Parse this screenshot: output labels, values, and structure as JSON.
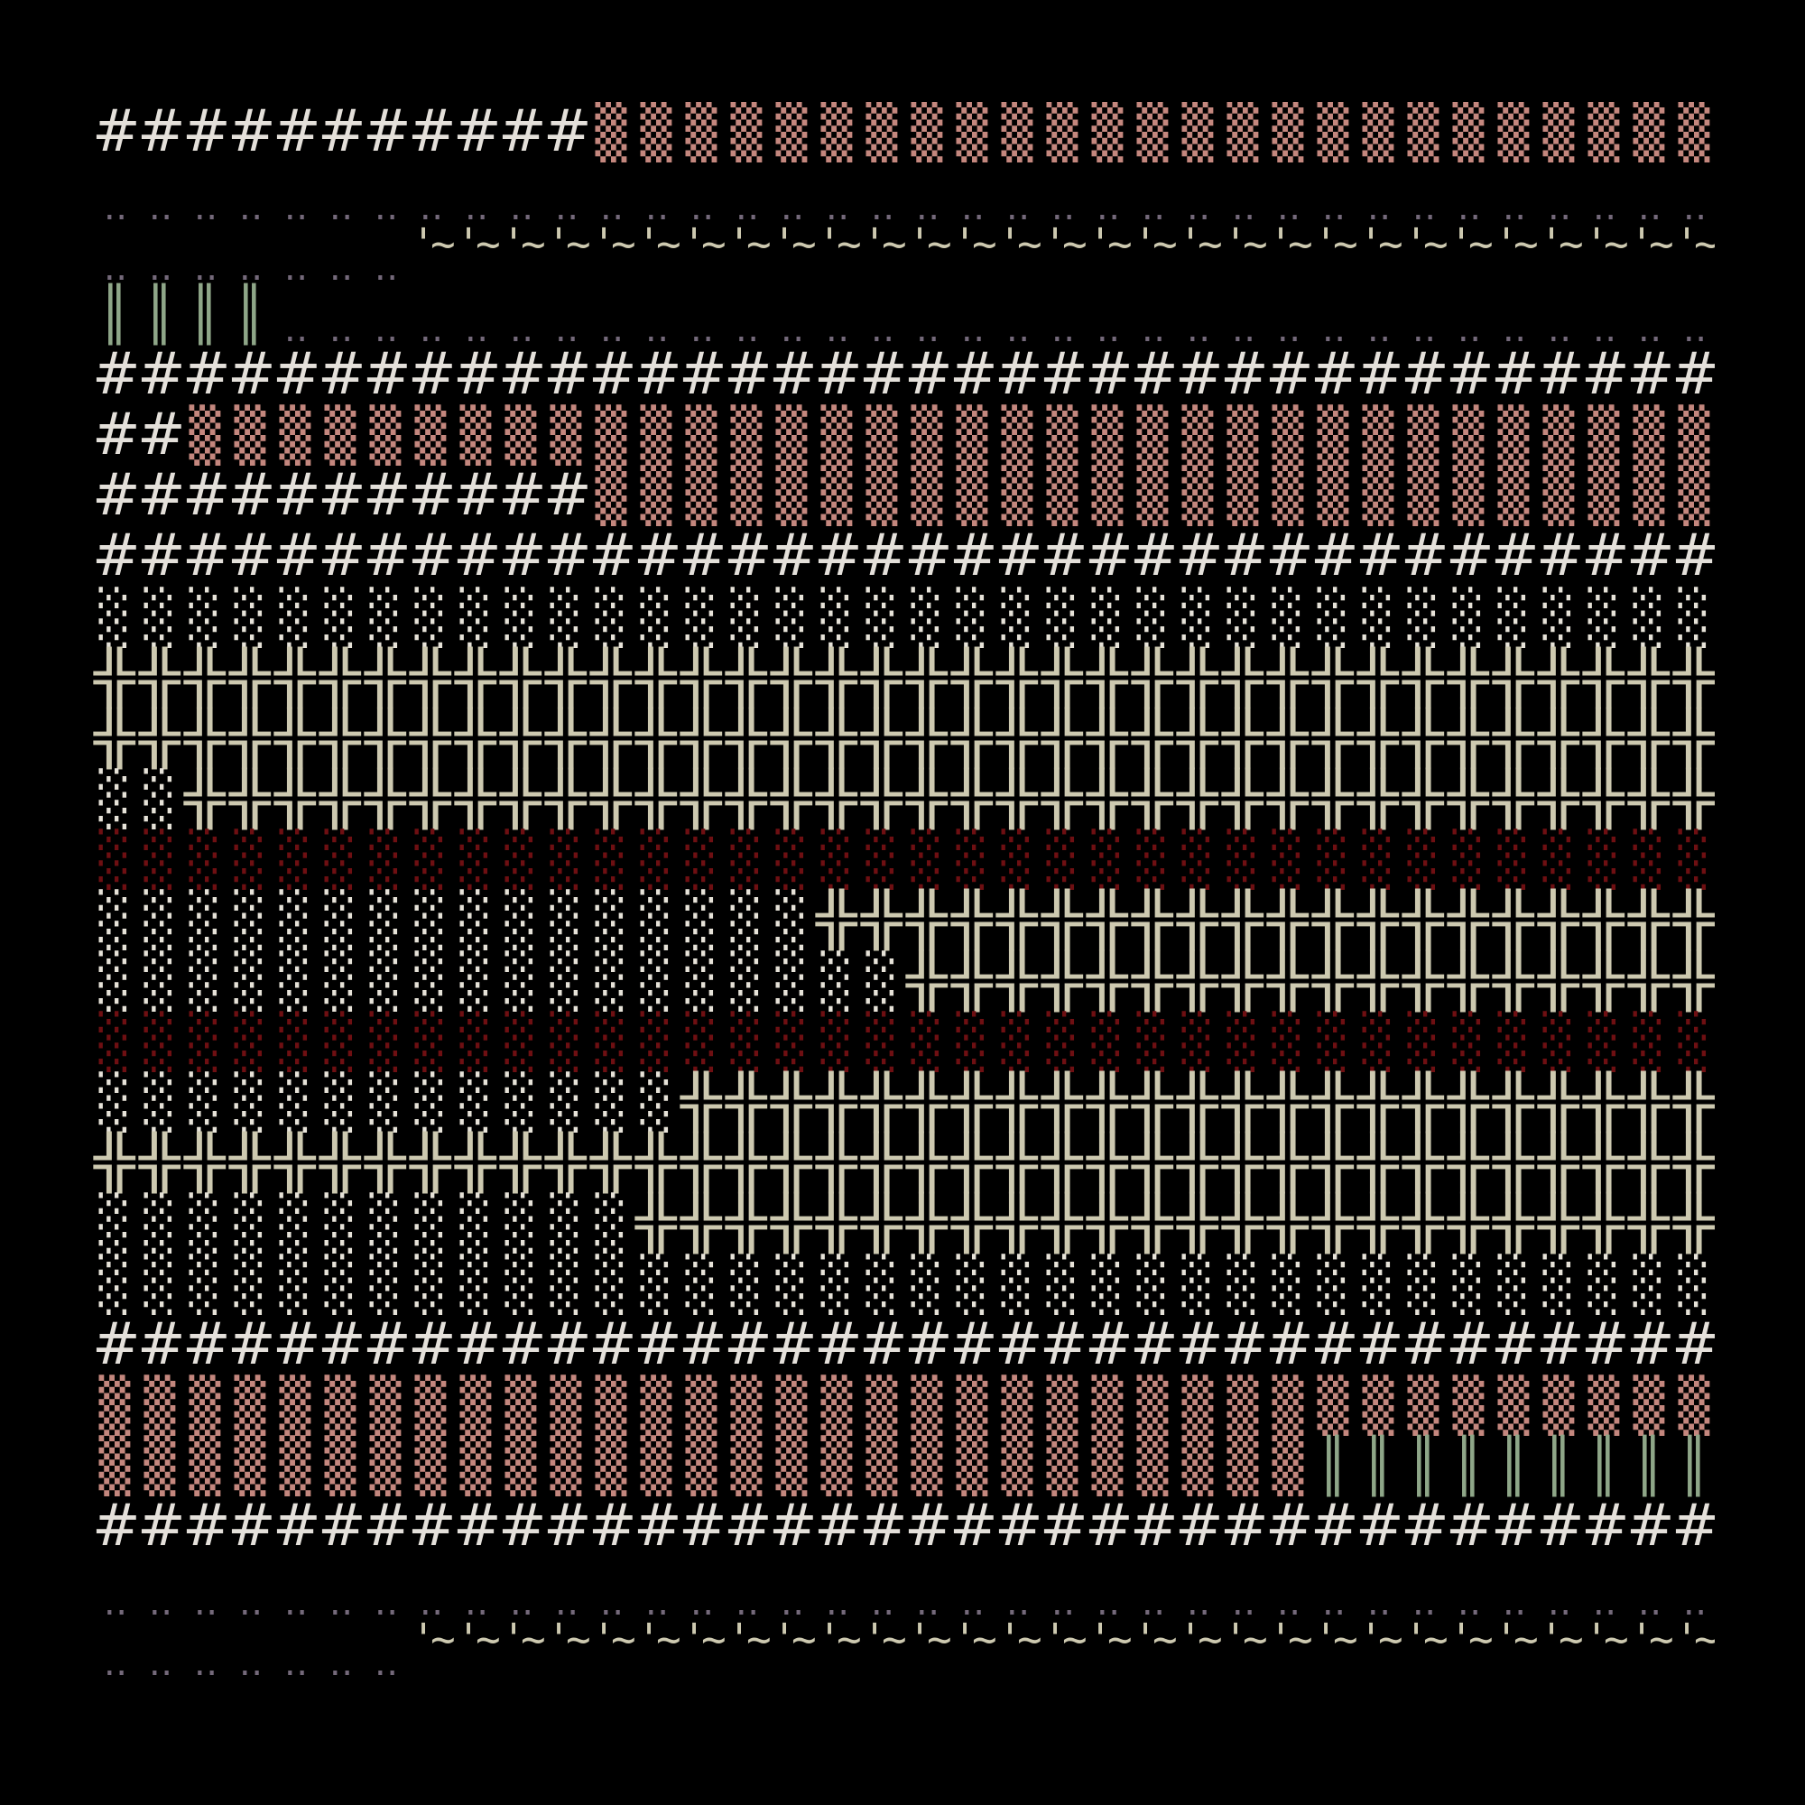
{
  "palette": {
    "#": "#e4e0da",
    "▒": "#c4877e",
    "░": "#e6e2d8",
    "╬": "#cdc9b0",
    "║": "#8ea688",
    "‥": "#74697a",
    "'~": "#cdc9b0"
  },
  "tile_names": {
    "#": "wall-tile",
    "▒": "brick-tile",
    "░": "floor-tile",
    "╬": "crossing-tile",
    "║": "pillar-tile",
    "‥": "ground-tile",
    "'~": "water-tile",
    " ": "empty-tile"
  },
  "map": {
    "rows": [
      [
        {
          "g": "#",
          "n": 11
        },
        {
          "g": "▒",
          "n": 26
        }
      ],
      [
        {
          "g": "‥",
          "n": 37
        }
      ],
      [
        {
          "g": "‥",
          "n": 7
        },
        {
          "g": "'~",
          "n": 30
        }
      ],
      [
        {
          "g": "║",
          "n": 4
        },
        {
          "g": "‥",
          "n": 33
        }
      ],
      [
        {
          "g": "#",
          "n": 37
        }
      ],
      [
        {
          "g": "#",
          "n": 2
        },
        {
          "g": "▒",
          "n": 35
        }
      ],
      [
        {
          "g": "#",
          "n": 11
        },
        {
          "g": "▒",
          "n": 26
        }
      ],
      [
        {
          "g": "#",
          "n": 37
        }
      ],
      [
        {
          "g": "░",
          "n": 37
        }
      ],
      [
        {
          "g": "╬",
          "n": 37
        }
      ],
      [
        {
          "g": "╬",
          "n": 37
        }
      ],
      [
        {
          "g": "░",
          "n": 2
        },
        {
          "g": "╬",
          "n": 35
        }
      ],
      [
        {
          "g": "░",
          "n": 37,
          "color": "#6e0f12"
        }
      ],
      [
        {
          "g": "░",
          "n": 16
        },
        {
          "g": "╬",
          "n": 21
        }
      ],
      [
        {
          "g": "░",
          "n": 18
        },
        {
          "g": "╬",
          "n": 19
        }
      ],
      [
        {
          "g": "░",
          "n": 37,
          "color": "#6e0f12"
        }
      ],
      [
        {
          "g": "░",
          "n": 13
        },
        {
          "g": "╬",
          "n": 24
        }
      ],
      [
        {
          "g": "╬",
          "n": 37
        }
      ],
      [
        {
          "g": "░",
          "n": 12
        },
        {
          "g": "╬",
          "n": 25
        }
      ],
      [
        {
          "g": "░",
          "n": 37
        }
      ],
      [
        {
          "g": "#",
          "n": 37
        }
      ],
      [
        {
          "g": "▒",
          "n": 37
        }
      ],
      [
        {
          "g": "▒",
          "n": 27
        },
        {
          "g": "║",
          "n": 9
        },
        {
          "g": " ",
          "n": 1
        }
      ],
      [
        {
          "g": "#",
          "n": 37
        }
      ],
      [
        {
          "g": "‥",
          "n": 37
        }
      ],
      [
        {
          "g": "‥",
          "n": 7
        },
        {
          "g": "'~",
          "n": 30
        }
      ]
    ]
  }
}
